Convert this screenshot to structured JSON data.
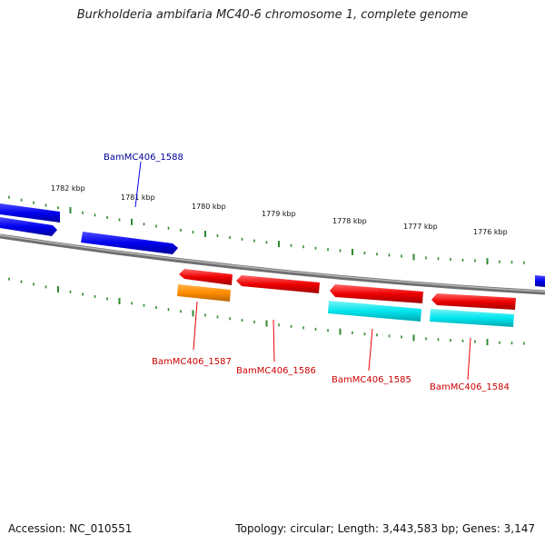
{
  "title": "Burkholderia ambifaria MC40-6 chromosome 1, complete genome",
  "footer": {
    "accession": "Accession: NC_010551",
    "info": "Topology: circular; Length: 3,443,583 bp; Genes: 3,147"
  },
  "colors": {
    "forward_gene": "#0000ee",
    "reverse_gene": "#ee0000",
    "cds_feature": "#00e5ee",
    "rna_feature": "#ff8c00",
    "backbone": "#8a8a8a",
    "ticks": "#2f8a2f",
    "forward_label": "#00009a",
    "reverse_label": "#cc0000"
  },
  "scale_labels": [
    "1782 kbp",
    "1781 kbp",
    "1780 kbp",
    "1779 kbp",
    "1778 kbp",
    "1777 kbp",
    "1776 kbp"
  ],
  "gene_labels": {
    "forward": [
      "BamMC406_1588"
    ],
    "reverse": [
      "BamMC406_1587",
      "BamMC406_1586",
      "BamMC406_1585",
      "BamMC406_1584"
    ]
  }
}
